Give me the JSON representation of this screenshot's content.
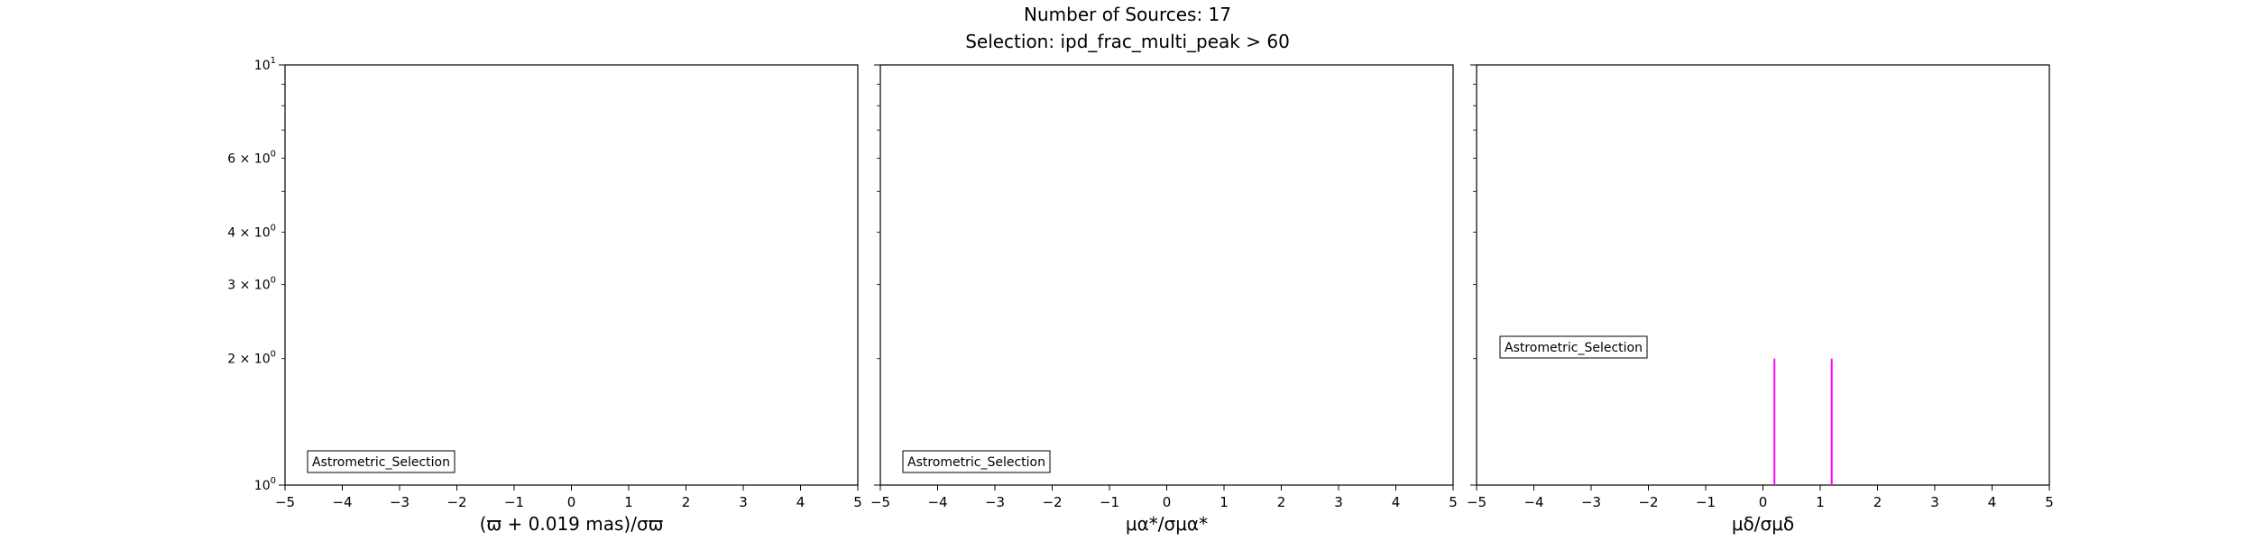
{
  "figure": {
    "title_line1": "Number of Sources: 17",
    "title_line2": "Selection: ipd_frac_multi_peak > 60"
  },
  "chart_data": [
    {
      "type": "histogram",
      "xlabel": "(ϖ + 0.019 mas)/σϖ",
      "yscale": "log",
      "xlim": [
        -5,
        5
      ],
      "ylim": [
        1,
        10
      ],
      "xticks": [
        -5,
        -4,
        -3,
        -2,
        -1,
        0,
        1,
        2,
        3,
        4,
        5
      ],
      "yticks": [
        {
          "value": 1,
          "base": "10",
          "exp": "0"
        },
        {
          "value": 2,
          "base": "2 × 10",
          "exp": "0"
        },
        {
          "value": 3,
          "base": "3 × 10",
          "exp": "0"
        },
        {
          "value": 4,
          "base": "4 × 10",
          "exp": "0"
        },
        {
          "value": 6,
          "base": "6 × 10",
          "exp": "0"
        },
        {
          "value": 10,
          "base": "10",
          "exp": "1"
        }
      ],
      "legend": "Astrometric_Selection",
      "legend_position": "lower-left",
      "series": [
        {
          "name": "Astrometric_Selection",
          "color": "#ff00ff",
          "bars": []
        }
      ]
    },
    {
      "type": "histogram",
      "xlabel": "μα*/σμα*",
      "yscale": "log",
      "xlim": [
        -5,
        5
      ],
      "ylim": [
        1,
        10
      ],
      "xticks": [
        -5,
        -4,
        -3,
        -2,
        -1,
        0,
        1,
        2,
        3,
        4,
        5
      ],
      "legend": "Astrometric_Selection",
      "legend_position": "lower-left",
      "series": [
        {
          "name": "Astrometric_Selection",
          "color": "#ff00ff",
          "bars": []
        }
      ]
    },
    {
      "type": "histogram",
      "xlabel": "μδ/σμδ",
      "yscale": "log",
      "xlim": [
        -5,
        5
      ],
      "ylim": [
        1,
        10
      ],
      "xticks": [
        -5,
        -4,
        -3,
        -2,
        -1,
        0,
        1,
        2,
        3,
        4,
        5
      ],
      "legend": "Astrometric_Selection",
      "legend_position": "center-left",
      "series": [
        {
          "name": "Astrometric_Selection",
          "color": "#ff00ff",
          "bars": [
            {
              "x": 0.2,
              "count": 2
            },
            {
              "x": 1.2,
              "count": 2
            }
          ]
        }
      ]
    }
  ]
}
